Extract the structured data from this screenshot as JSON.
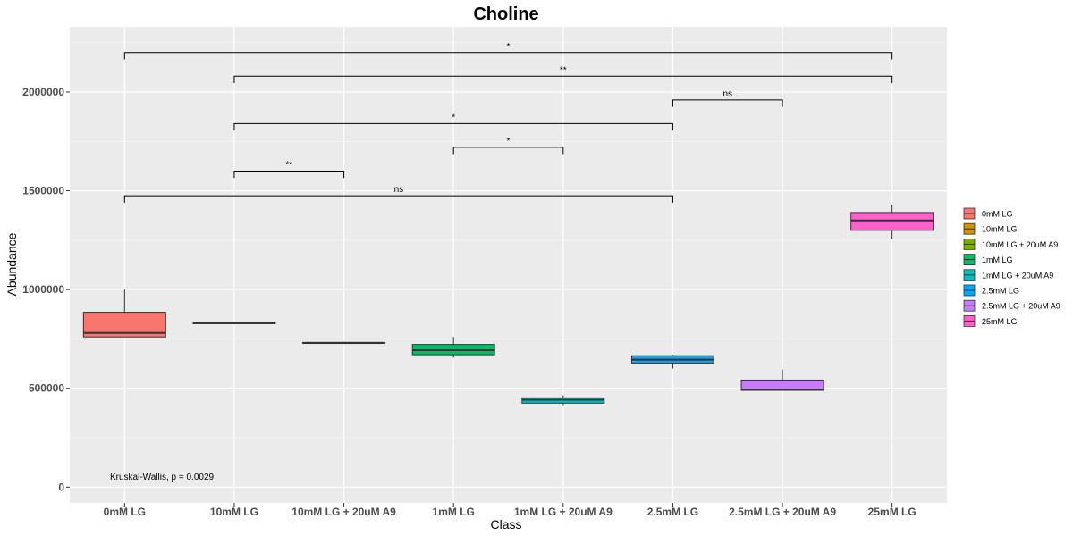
{
  "chart_data": {
    "type": "box",
    "title": "Choline",
    "xlabel": "Class",
    "ylabel": "Abundance",
    "ylim": [
      -80000,
      2330000
    ],
    "y_ticks": [
      0,
      500000,
      1000000,
      1500000,
      2000000
    ],
    "y_tick_labels": [
      "0",
      "500000",
      "1000000",
      "1500000",
      "2000000"
    ],
    "categories": [
      "0mM LG",
      "10mM LG",
      "10mM LG + 20uM A9",
      "1mM LG",
      "1mM LG + 20uM A9",
      "2.5mM LG",
      "2.5mM LG + 20uM A9",
      "25mM LG"
    ],
    "boxes": [
      {
        "category": "0mM LG",
        "color": "#F8766D",
        "min": 760000,
        "q1": 760000,
        "median": 780000,
        "q3": 885000,
        "max": 1000000
      },
      {
        "category": "10mM LG",
        "color": "#CD9600",
        "min": 825000,
        "q1": 827000,
        "median": 830000,
        "q3": 832000,
        "max": 835000
      },
      {
        "category": "10mM LG + 20uM A9",
        "color": "#7CAE00",
        "min": 725000,
        "q1": 727000,
        "median": 730000,
        "q3": 732000,
        "max": 735000
      },
      {
        "category": "1mM LG",
        "color": "#00BE67",
        "min": 655000,
        "q1": 670000,
        "median": 693000,
        "q3": 722000,
        "max": 760000
      },
      {
        "category": "1mM LG + 20uM A9",
        "color": "#00BFC4",
        "min": 415000,
        "q1": 425000,
        "median": 442000,
        "q3": 452000,
        "max": 465000
      },
      {
        "category": "2.5mM LG",
        "color": "#00A9FF",
        "min": 600000,
        "q1": 628000,
        "median": 645000,
        "q3": 665000,
        "max": 670000
      },
      {
        "category": "2.5mM LG + 20uM A9",
        "color": "#C77CFF",
        "min": 488000,
        "q1": 490000,
        "median": 492000,
        "q3": 542000,
        "max": 595000
      },
      {
        "category": "25mM LG",
        "color": "#FF61CC",
        "min": 1255000,
        "q1": 1300000,
        "median": 1350000,
        "q3": 1390000,
        "max": 1430000
      }
    ],
    "comparisons": [
      {
        "from": "0mM LG",
        "to": "25mM LG",
        "label": "*",
        "y": 2200000
      },
      {
        "from": "10mM LG",
        "to": "25mM LG",
        "label": "**",
        "y": 2080000
      },
      {
        "from": "2.5mM LG",
        "to": "2.5mM LG + 20uM A9",
        "label": "ns",
        "y": 1960000
      },
      {
        "from": "10mM LG",
        "to": "2.5mM LG",
        "label": "*",
        "y": 1840000
      },
      {
        "from": "1mM LG",
        "to": "1mM LG + 20uM A9",
        "label": "*",
        "y": 1720000
      },
      {
        "from": "10mM LG",
        "to": "10mM LG + 20uM A9",
        "label": "**",
        "y": 1600000
      },
      {
        "from": "0mM LG",
        "to": "2.5mM LG",
        "label": "ns",
        "y": 1475000
      }
    ],
    "stat_test": "Kruskal-Wallis, p = 0.0029",
    "legend_position": "right",
    "grid": true
  }
}
